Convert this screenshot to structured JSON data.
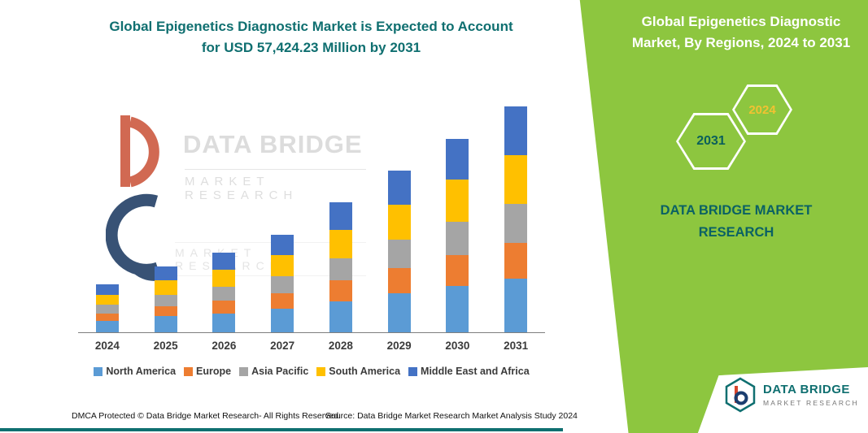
{
  "colors": {
    "teal": "#0f6f70",
    "green": "#8dc63f",
    "dark_teal_on_green": "#0b6164",
    "gold": "#f1c232"
  },
  "header": {
    "title_line1": "Global Epigenetics Diagnostic Market is Expected to Account",
    "title_line2": "for USD 57,424.23 Million by 2031"
  },
  "right_panel": {
    "title": "Global Epigenetics Diagnostic Market, By Regions, 2024 to 2031",
    "hexagon_back_year": "2031",
    "hexagon_front_year": "2024",
    "brand": "DATA BRIDGE MARKET RESEARCH"
  },
  "watermark": {
    "line1": "DATA BRIDGE",
    "line2": "MARKET RESEARCH",
    "line3": "MARKET RESEARCH"
  },
  "footer": {
    "dmca": "DMCA Protected © Data Bridge Market Research-  All Rights Reserved.",
    "source": "Source: Data Bridge Market Research  Market Analysis Study 2024"
  },
  "logo": {
    "name": "DATA BRIDGE",
    "subtitle": "MARKET RESEARCH"
  },
  "chart_data": {
    "type": "bar",
    "stacked": true,
    "title": "Global Epigenetics Diagnostic Market is Expected to Account for USD 57,424.23 Million by 2031",
    "units": "USD Million",
    "categories": [
      "2024",
      "2025",
      "2026",
      "2027",
      "2028",
      "2029",
      "2030",
      "2031"
    ],
    "series": [
      {
        "name": "North America",
        "color": "#5B9BD5",
        "values": [
          2950,
          4050,
          4850,
          5950,
          7900,
          9850,
          11750,
          13600
        ]
      },
      {
        "name": "Europe",
        "color": "#ED7D31",
        "values": [
          1900,
          2650,
          3200,
          3950,
          5250,
          6550,
          7850,
          9100
        ]
      },
      {
        "name": "Asia Pacific",
        "color": "#A5A5A5",
        "values": [
          2100,
          2900,
          3500,
          4300,
          5700,
          7100,
          8500,
          9900
        ]
      },
      {
        "name": "South America",
        "color": "#FFC000",
        "values": [
          2650,
          3650,
          4400,
          5400,
          7150,
          8900,
          10650,
          12350
        ]
      },
      {
        "name": "Middle East and Africa",
        "color": "#4472C4",
        "values": [
          2600,
          3550,
          4300,
          5250,
          7000,
          8700,
          10450,
          12474.23
        ]
      }
    ],
    "xlabel": "",
    "ylabel": "",
    "ylim": [
      0,
      60000
    ],
    "grid": false,
    "legend_position": "bottom"
  }
}
